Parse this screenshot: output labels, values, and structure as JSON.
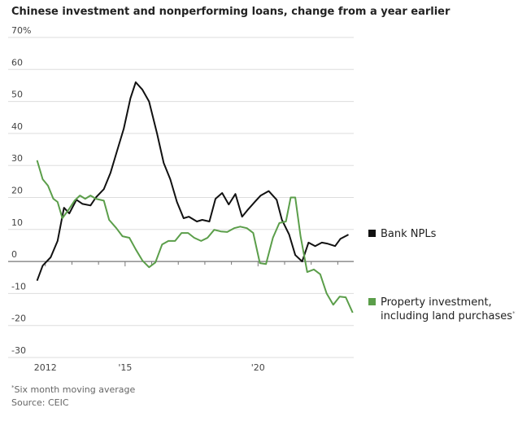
{
  "chart_data": {
    "type": "line",
    "title": "Chinese investment and nonperforming loans, change from a year earlier",
    "footnote": "Six month moving average",
    "footnote_marker": "*",
    "source": "Source: CEIC",
    "xlim": [
      2010.6,
      2023.6
    ],
    "xticks": [
      2012,
      {
        "value": 2015,
        "label": "'15"
      },
      {
        "value": 2020,
        "label": "'20"
      }
    ],
    "xminorticks": [
      2013,
      2014,
      2016,
      2017,
      2018,
      2019,
      2021,
      2022,
      2023
    ],
    "ylim": [
      -30,
      70
    ],
    "yticks": [
      {
        "value": 70,
        "label": "70%"
      },
      60,
      50,
      40,
      30,
      20,
      10,
      0,
      -10,
      -20,
      -30
    ],
    "grid": true,
    "series": [
      {
        "name": "Bank NPLs",
        "color": "#111111",
        "x": [
          2011.69,
          2011.9,
          2012.2,
          2012.46,
          2012.7,
          2012.9,
          2013.17,
          2013.4,
          2013.7,
          2013.9,
          2014.2,
          2014.45,
          2014.7,
          2014.95,
          2015.2,
          2015.4,
          2015.65,
          2015.9,
          2016.2,
          2016.45,
          2016.7,
          2016.95,
          2017.2,
          2017.4,
          2017.7,
          2017.9,
          2018.17,
          2018.4,
          2018.65,
          2018.9,
          2019.15,
          2019.4,
          2019.6,
          2019.9,
          2020.1,
          2020.4,
          2020.7,
          2020.9,
          2021.17,
          2021.4,
          2021.66,
          2021.9,
          2022.15,
          2022.4,
          2022.6,
          2022.9,
          2023.1,
          2023.4
        ],
        "values": [
          -6,
          -1.3,
          1.3,
          6.4,
          16.8,
          15,
          19.3,
          18,
          17.5,
          20,
          22.6,
          27.7,
          34.6,
          41.5,
          51,
          56,
          53.7,
          50,
          40,
          30.8,
          25.7,
          18.6,
          13.5,
          14,
          12.5,
          13,
          12.5,
          19.6,
          21.4,
          17.8,
          21.1,
          14,
          16,
          18.8,
          20.6,
          22,
          19.3,
          13,
          8.4,
          2,
          0,
          5.9,
          4.8,
          5.9,
          5.6,
          4.8,
          7.1,
          8.4
        ]
      },
      {
        "name": "Property investment, including land purchases",
        "color": "#5b9e4a",
        "x": [
          2011.69,
          2011.9,
          2012.1,
          2012.3,
          2012.46,
          2012.64,
          2012.9,
          2013.1,
          2013.3,
          2013.5,
          2013.7,
          2013.9,
          2014.2,
          2014.4,
          2014.67,
          2014.9,
          2015.16,
          2015.4,
          2015.65,
          2015.9,
          2016.14,
          2016.39,
          2016.63,
          2016.88,
          2017.12,
          2017.37,
          2017.6,
          2017.86,
          2018.1,
          2018.35,
          2018.6,
          2018.84,
          2019.1,
          2019.33,
          2019.58,
          2019.82,
          2020.07,
          2020.3,
          2020.56,
          2020.8,
          2021.05,
          2021.23,
          2021.4,
          2021.6,
          2021.85,
          2022.1,
          2022.34,
          2022.58,
          2022.83,
          2023.07,
          2023.3,
          2023.56
        ],
        "values": [
          31.6,
          25.7,
          23.7,
          19.6,
          18.6,
          13.5,
          16.5,
          19,
          20.6,
          19.6,
          20.6,
          19.6,
          19,
          13,
          10.4,
          7.9,
          7.4,
          3.8,
          0.3,
          -1.8,
          -0.3,
          5.3,
          6.4,
          6.4,
          8.9,
          8.9,
          7.4,
          6.4,
          7.4,
          9.9,
          9.4,
          9.2,
          10.4,
          10.9,
          10.4,
          8.9,
          -0.5,
          -0.8,
          7.4,
          12,
          12.5,
          20,
          20,
          7.9,
          -3.3,
          -2.5,
          -4,
          -10,
          -13.5,
          -11,
          -11.2,
          -16
        ]
      }
    ]
  }
}
